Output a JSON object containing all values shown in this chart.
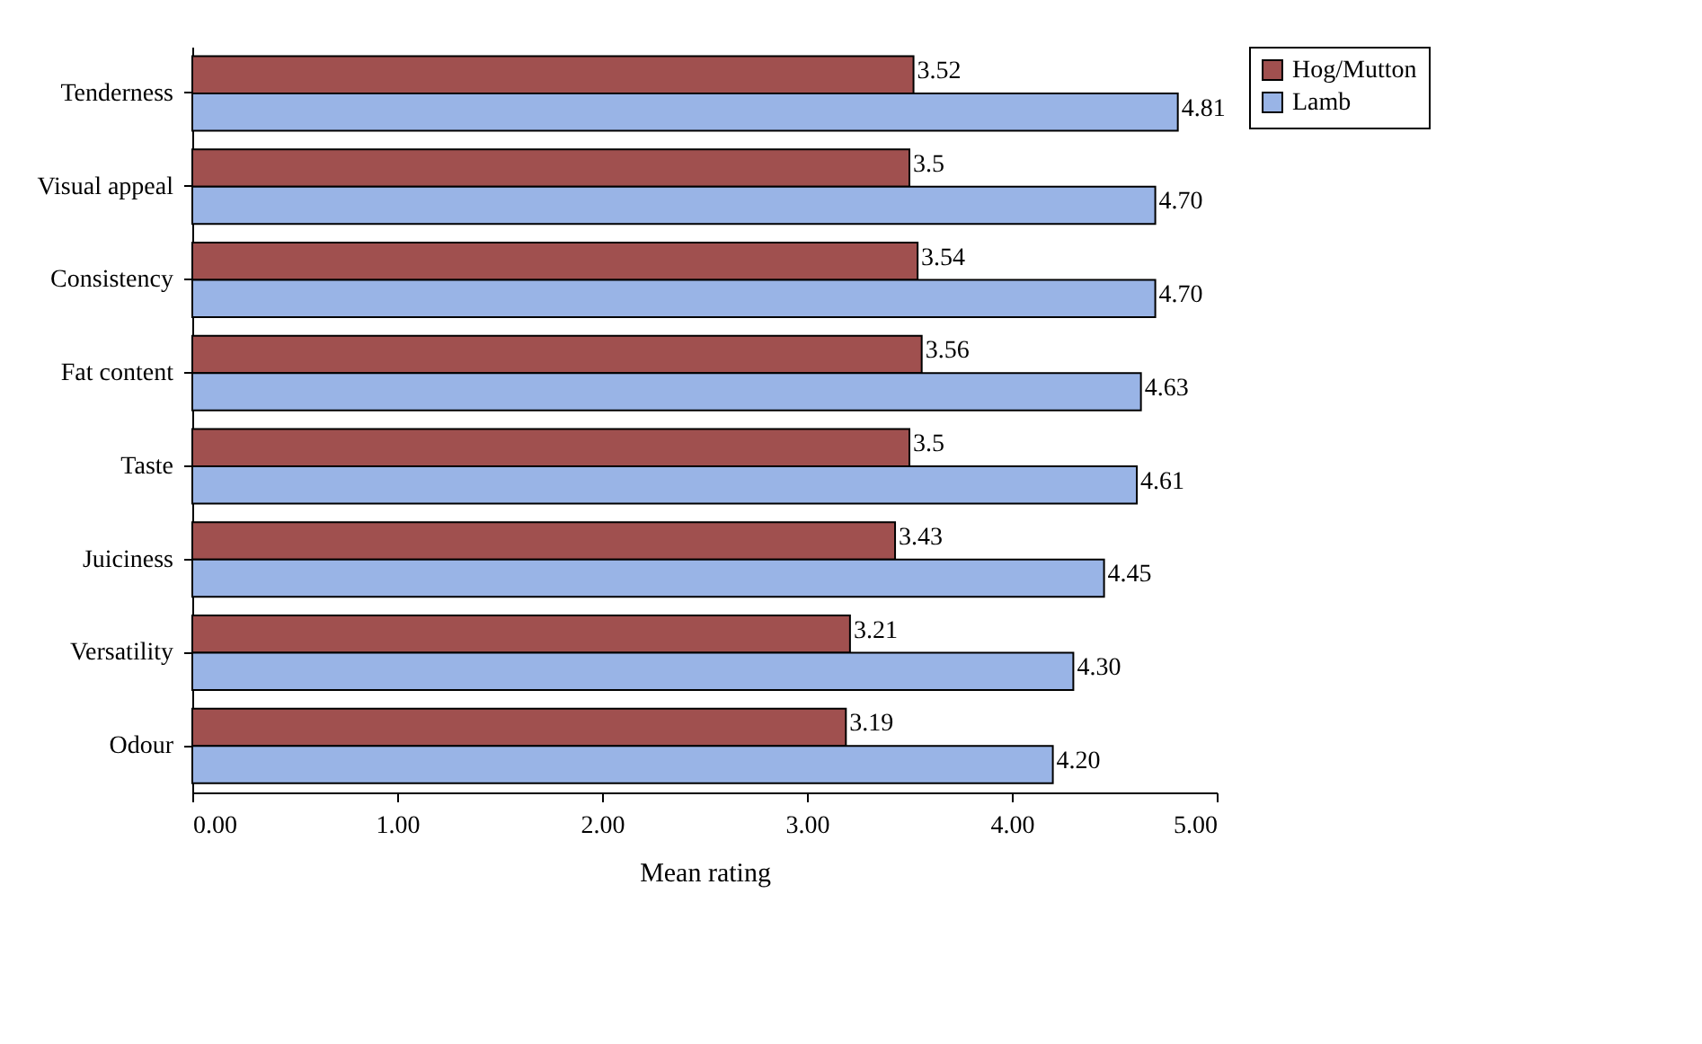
{
  "chart_data": {
    "type": "bar",
    "orientation": "horizontal",
    "xlabel": "Mean rating",
    "categories": [
      "Tenderness",
      "Visual appeal",
      "Consistency",
      "Fat content",
      "Taste",
      "Juiciness",
      "Versatility",
      "Odour"
    ],
    "series": [
      {
        "name": "Hog/Mutton",
        "color": "#a0504f",
        "values": [
          3.52,
          3.5,
          3.54,
          3.56,
          3.5,
          3.43,
          3.21,
          3.19
        ],
        "value_labels": [
          "3.52",
          "3.5",
          "3.54",
          "3.56",
          "3.5",
          "3.43",
          "3.21",
          "3.19"
        ]
      },
      {
        "name": "Lamb",
        "color": "#99b4e6",
        "values": [
          4.81,
          4.7,
          4.7,
          4.63,
          4.61,
          4.45,
          4.3,
          4.2
        ],
        "value_labels": [
          "4.81",
          "4.70",
          "4.70",
          "4.63",
          "4.61",
          "4.45",
          "4.30",
          "4.20"
        ]
      }
    ],
    "xlim": [
      0,
      5
    ],
    "xticks": [
      {
        "value": 0,
        "label": "0.00"
      },
      {
        "value": 1,
        "label": "1.00"
      },
      {
        "value": 2,
        "label": "2.00"
      },
      {
        "value": 3,
        "label": "3.00"
      },
      {
        "value": 4,
        "label": "4.00"
      },
      {
        "value": 5,
        "label": "5.00"
      }
    ],
    "legend": "right"
  }
}
